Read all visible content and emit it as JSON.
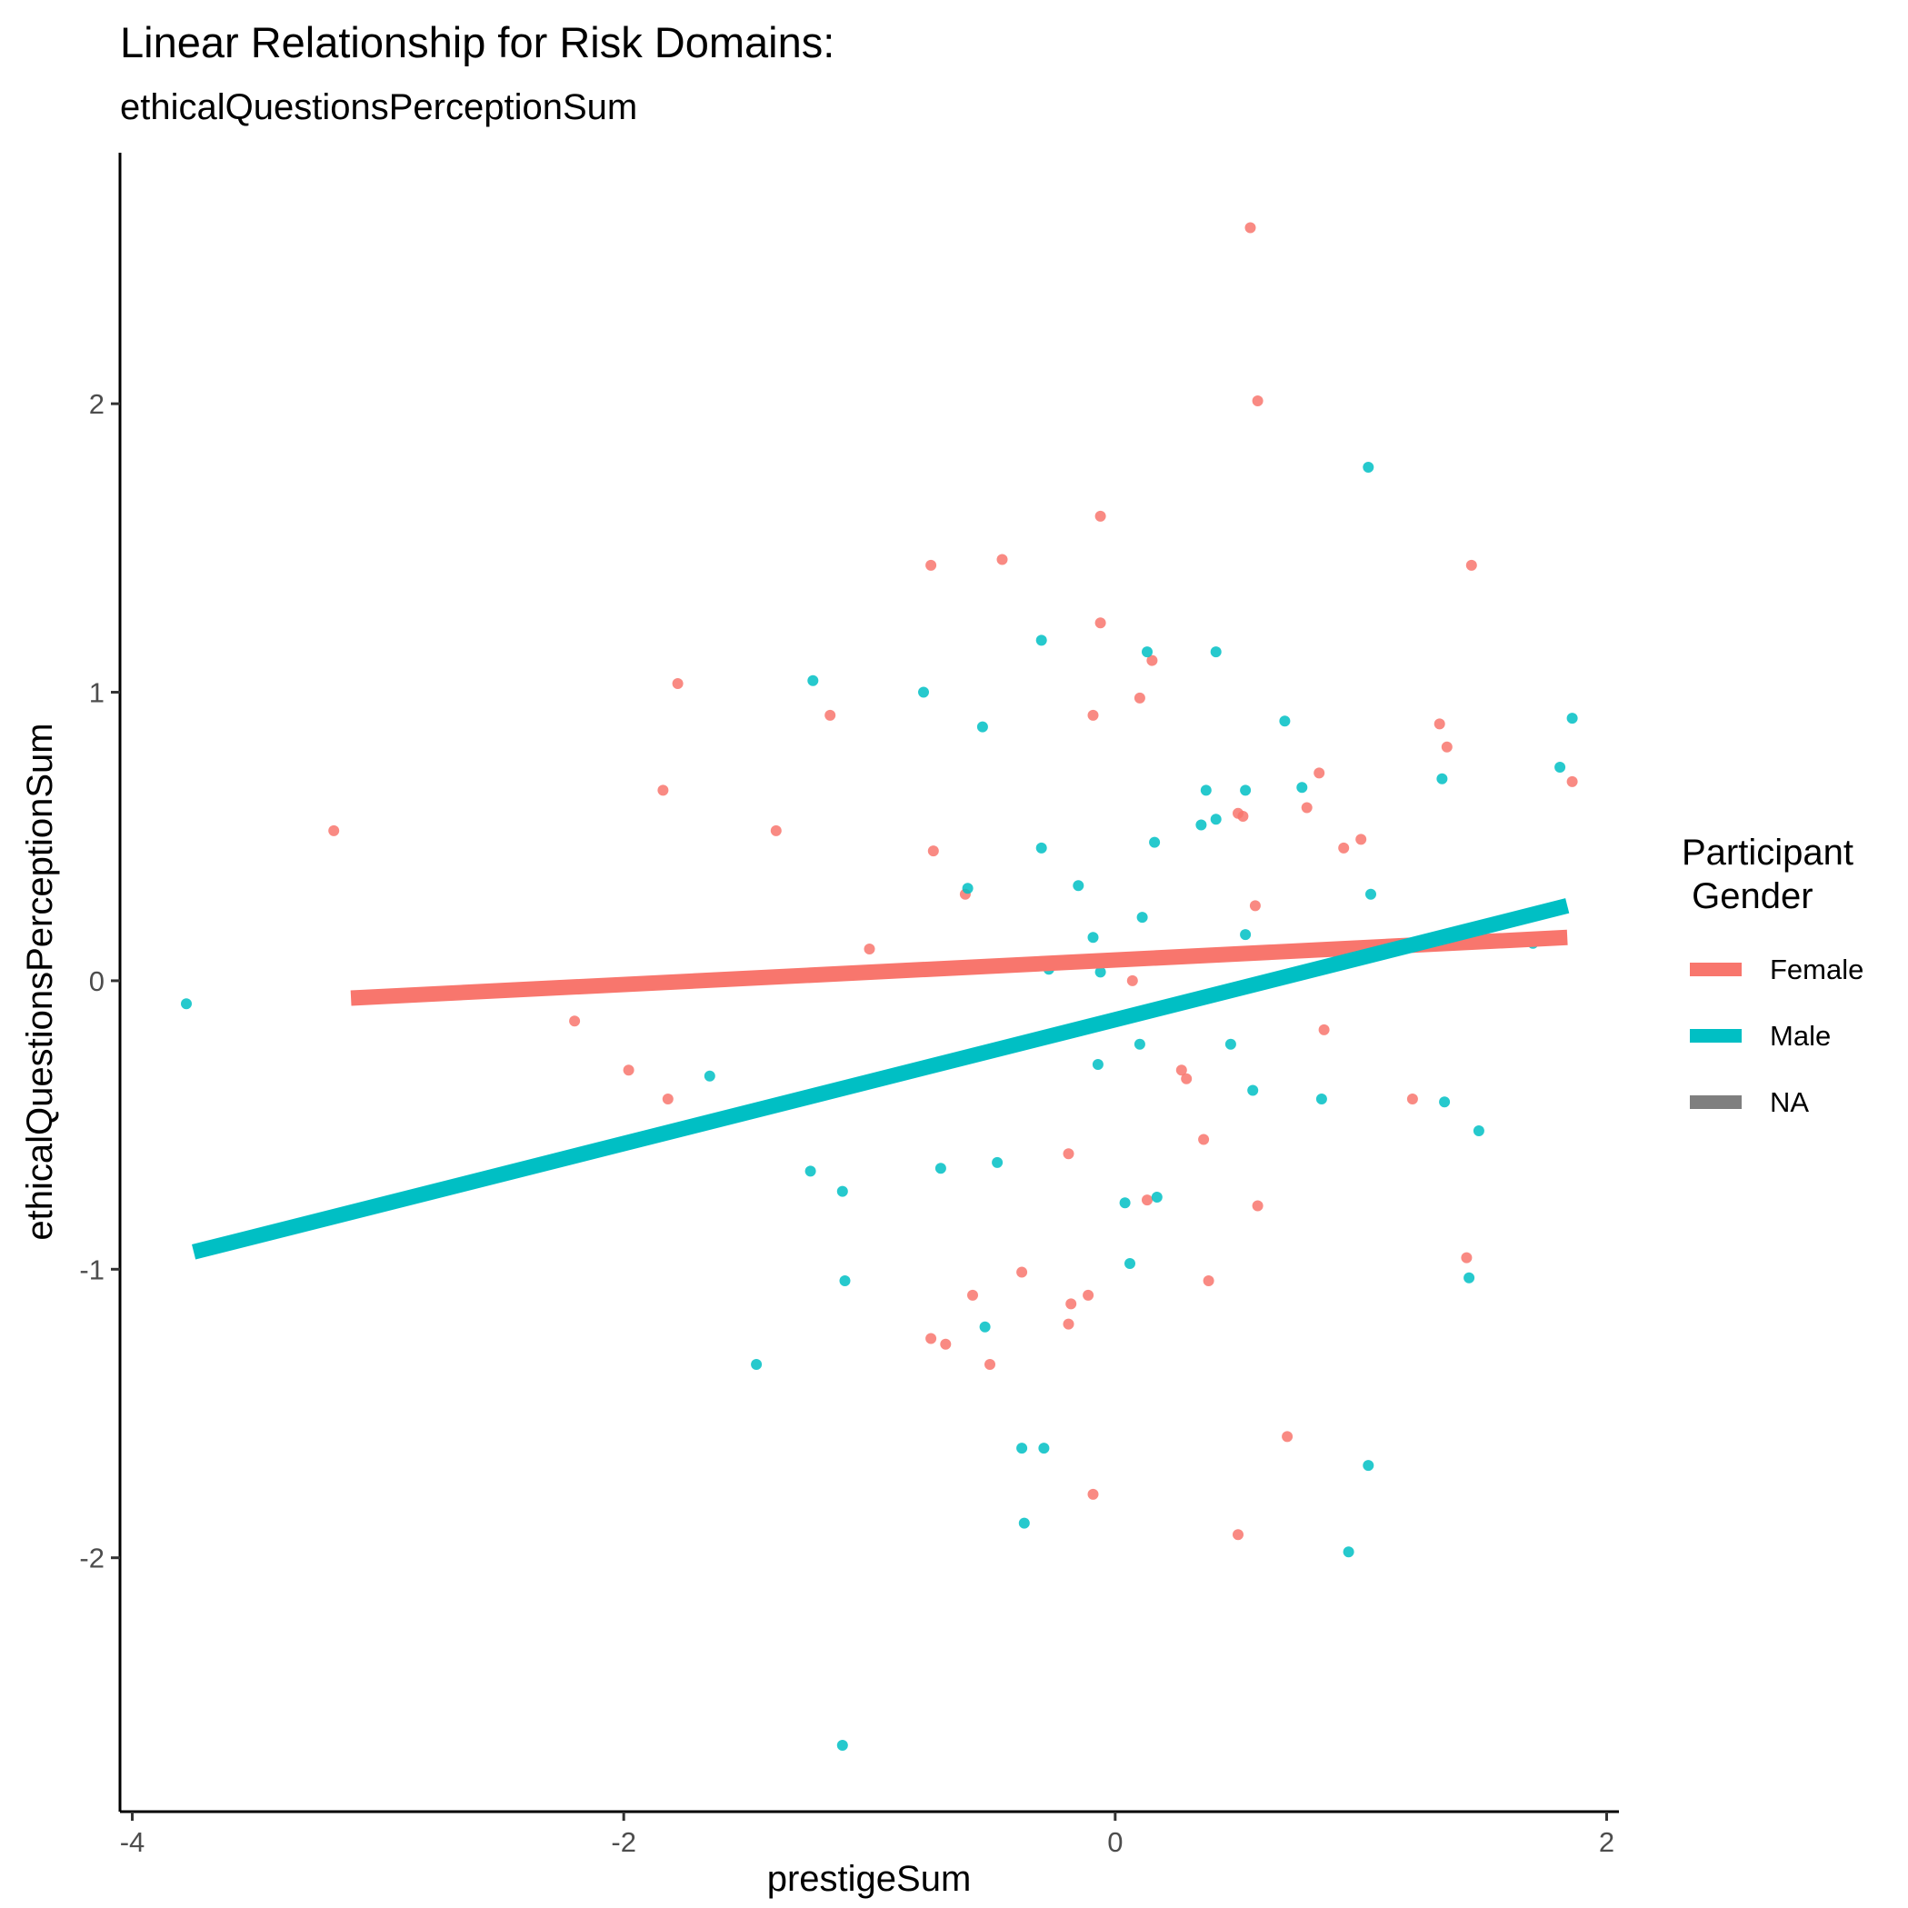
{
  "chart_data": {
    "type": "scatter",
    "title": "Linear Relationship for Risk Domains:",
    "subtitle": "ethicalQuestionsPerceptionSum",
    "xlabel": "prestigeSum",
    "ylabel": "ethicalQuestionsPerceptionSum",
    "xlim": [
      -4.05,
      2.05
    ],
    "ylim": [
      -2.88,
      2.87
    ],
    "x_ticks": [
      -4,
      -2,
      0,
      2
    ],
    "y_ticks": [
      -2,
      -1,
      0,
      1,
      2
    ],
    "x_tick_labels": [
      "-4",
      "-2",
      "0",
      "2"
    ],
    "y_tick_labels": [
      "-2",
      "-1",
      "0",
      "1",
      "2"
    ],
    "grid": false,
    "legend": {
      "title_line1": "Participant",
      "title_line2": " Gender",
      "position": "right",
      "entries": [
        {
          "label": "Female",
          "color": "#F8766D"
        },
        {
          "label": "Male",
          "color": "#00BFC4"
        },
        {
          "label": "NA",
          "color": "#7F7F7F"
        }
      ]
    },
    "series": [
      {
        "name": "Female",
        "color": "#F8766D",
        "fit_line": {
          "x": [
            -3.11,
            1.84
          ],
          "y": [
            -0.06,
            0.15
          ]
        },
        "points": [
          [
            0.55,
            2.61
          ],
          [
            0.58,
            2.01
          ],
          [
            -0.06,
            1.61
          ],
          [
            -0.75,
            1.44
          ],
          [
            -0.46,
            1.46
          ],
          [
            1.45,
            1.44
          ],
          [
            -0.06,
            1.24
          ],
          [
            0.15,
            1.11
          ],
          [
            -1.78,
            1.03
          ],
          [
            -1.16,
            0.92
          ],
          [
            -0.09,
            0.92
          ],
          [
            0.1,
            0.98
          ],
          [
            1.32,
            0.89
          ],
          [
            1.35,
            0.81
          ],
          [
            0.83,
            0.72
          ],
          [
            1.86,
            0.69
          ],
          [
            -1.84,
            0.66
          ],
          [
            -3.18,
            0.52
          ],
          [
            -1.38,
            0.52
          ],
          [
            0.78,
            0.6
          ],
          [
            0.52,
            0.57
          ],
          [
            0.5,
            0.58
          ],
          [
            1.0,
            0.49
          ],
          [
            0.93,
            0.46
          ],
          [
            -0.74,
            0.45
          ],
          [
            -0.61,
            0.3
          ],
          [
            0.57,
            0.26
          ],
          [
            -1.0,
            0.11
          ],
          [
            0.07,
            0.0
          ],
          [
            -2.2,
            -0.14
          ],
          [
            -1.98,
            -0.31
          ],
          [
            -1.82,
            -0.41
          ],
          [
            0.85,
            -0.17
          ],
          [
            0.27,
            -0.31
          ],
          [
            0.29,
            -0.34
          ],
          [
            1.21,
            -0.41
          ],
          [
            0.36,
            -0.55
          ],
          [
            -0.19,
            -0.6
          ],
          [
            0.13,
            -0.76
          ],
          [
            0.58,
            -0.78
          ],
          [
            -0.38,
            -1.01
          ],
          [
            0.38,
            -1.04
          ],
          [
            1.43,
            -0.96
          ],
          [
            -0.58,
            -1.09
          ],
          [
            -0.11,
            -1.09
          ],
          [
            -0.18,
            -1.12
          ],
          [
            -0.19,
            -1.19
          ],
          [
            -0.75,
            -1.24
          ],
          [
            -0.69,
            -1.26
          ],
          [
            -0.51,
            -1.33
          ],
          [
            0.7,
            -1.58
          ],
          [
            -0.09,
            -1.78
          ],
          [
            0.5,
            -1.92
          ]
        ]
      },
      {
        "name": "Male",
        "color": "#00BFC4",
        "fit_line": {
          "x": [
            -3.75,
            1.84
          ],
          "y": [
            -0.94,
            0.26
          ]
        },
        "points": [
          [
            1.03,
            1.78
          ],
          [
            -0.3,
            1.18
          ],
          [
            0.13,
            1.14
          ],
          [
            0.41,
            1.14
          ],
          [
            -1.23,
            1.04
          ],
          [
            -0.78,
            1.0
          ],
          [
            -0.54,
            0.88
          ],
          [
            1.86,
            0.91
          ],
          [
            0.69,
            0.9
          ],
          [
            1.81,
            0.74
          ],
          [
            1.33,
            0.7
          ],
          [
            0.76,
            0.67
          ],
          [
            0.37,
            0.66
          ],
          [
            0.53,
            0.66
          ],
          [
            0.35,
            0.54
          ],
          [
            0.41,
            0.56
          ],
          [
            0.16,
            0.48
          ],
          [
            -0.3,
            0.46
          ],
          [
            -0.15,
            0.33
          ],
          [
            -0.6,
            0.32
          ],
          [
            1.04,
            0.3
          ],
          [
            0.11,
            0.22
          ],
          [
            0.53,
            0.16
          ],
          [
            -0.09,
            0.15
          ],
          [
            1.7,
            0.13
          ],
          [
            -0.27,
            0.04
          ],
          [
            -0.06,
            0.03
          ],
          [
            0.08,
            0.07
          ],
          [
            -3.78,
            -0.08
          ],
          [
            -1.65,
            -0.33
          ],
          [
            0.1,
            -0.22
          ],
          [
            0.47,
            -0.22
          ],
          [
            -0.07,
            -0.29
          ],
          [
            0.56,
            -0.38
          ],
          [
            0.84,
            -0.41
          ],
          [
            1.34,
            -0.42
          ],
          [
            1.48,
            -0.52
          ],
          [
            -1.24,
            -0.66
          ],
          [
            -0.71,
            -0.65
          ],
          [
            -0.48,
            -0.63
          ],
          [
            -1.11,
            -0.73
          ],
          [
            0.17,
            -0.75
          ],
          [
            0.04,
            -0.77
          ],
          [
            0.06,
            -0.98
          ],
          [
            1.44,
            -1.03
          ],
          [
            -1.1,
            -1.04
          ],
          [
            -0.53,
            -1.2
          ],
          [
            -1.46,
            -1.33
          ],
          [
            -0.38,
            -1.62
          ],
          [
            -0.29,
            -1.62
          ],
          [
            1.03,
            -1.68
          ],
          [
            -0.37,
            -1.88
          ],
          [
            0.95,
            -1.98
          ],
          [
            -1.11,
            -2.65
          ]
        ]
      }
    ]
  }
}
